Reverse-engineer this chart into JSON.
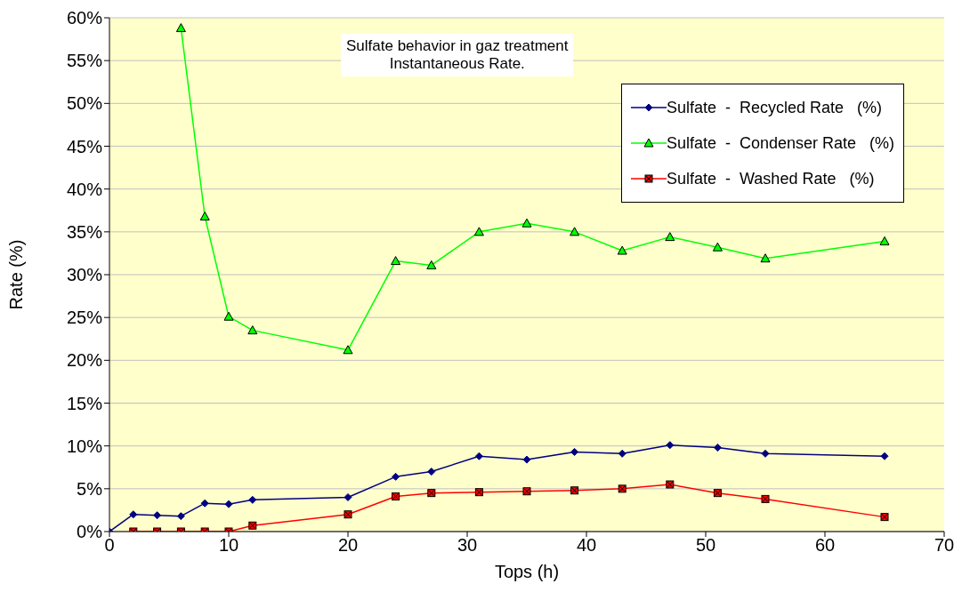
{
  "chart_data": {
    "type": "line",
    "title": "Sulfate behavior in gaz treatment\nInstantaneous Rate.",
    "xlabel": "Tops (h)",
    "ylabel": "Rate (%)",
    "xlim": [
      0,
      70
    ],
    "xticks": [
      0,
      10,
      20,
      30,
      40,
      50,
      60,
      70
    ],
    "ylim": [
      0,
      60
    ],
    "yticks": [
      {
        "value": 0,
        "label": "0%"
      },
      {
        "value": 5,
        "label": "5%"
      },
      {
        "value": 10,
        "label": "10%"
      },
      {
        "value": 15,
        "label": "15%"
      },
      {
        "value": 20,
        "label": "20%"
      },
      {
        "value": 25,
        "label": "25%"
      },
      {
        "value": 30,
        "label": "30%"
      },
      {
        "value": 35,
        "label": "35%"
      },
      {
        "value": 40,
        "label": "40%"
      },
      {
        "value": 45,
        "label": "45%"
      },
      {
        "value": 50,
        "label": "50%"
      },
      {
        "value": 55,
        "label": "55%"
      },
      {
        "value": 60,
        "label": "60%"
      }
    ],
    "grid": "y",
    "legend": "top right",
    "line_style": "solid",
    "series": [
      {
        "name": "Sulfate  -  Recycled Rate   (%)",
        "color": "#000080",
        "marker": "diamond",
        "x": [
          0,
          2,
          4,
          6,
          8,
          10,
          12,
          20,
          24,
          27,
          31,
          35,
          39,
          43,
          47,
          51,
          55,
          65
        ],
        "values": [
          0,
          2.0,
          1.9,
          1.8,
          3.3,
          3.2,
          3.7,
          4.0,
          6.4,
          7.0,
          8.8,
          8.4,
          9.3,
          9.1,
          10.1,
          9.8,
          9.1,
          8.8
        ]
      },
      {
        "name": "Sulfate  -  Condenser Rate   (%)",
        "color": "#00ff00",
        "marker": "triangle",
        "x": [
          6,
          8,
          10,
          12,
          20,
          24,
          27,
          31,
          35,
          39,
          43,
          47,
          51,
          55,
          65
        ],
        "values": [
          58.8,
          36.8,
          25.1,
          23.5,
          21.2,
          31.6,
          31.1,
          35.0,
          36.0,
          35.0,
          32.8,
          34.4,
          33.2,
          31.9,
          33.9
        ]
      },
      {
        "name": "Sulfate  -  Washed Rate   (%)",
        "color": "#ff0000",
        "marker": "square",
        "x": [
          2,
          4,
          6,
          8,
          10,
          12,
          20,
          24,
          27,
          31,
          35,
          39,
          43,
          47,
          51,
          55,
          65
        ],
        "values": [
          0,
          0,
          0,
          0,
          0,
          0.7,
          2.0,
          4.1,
          4.5,
          4.6,
          4.7,
          4.8,
          5.0,
          5.5,
          4.5,
          3.8,
          1.7
        ]
      }
    ]
  }
}
